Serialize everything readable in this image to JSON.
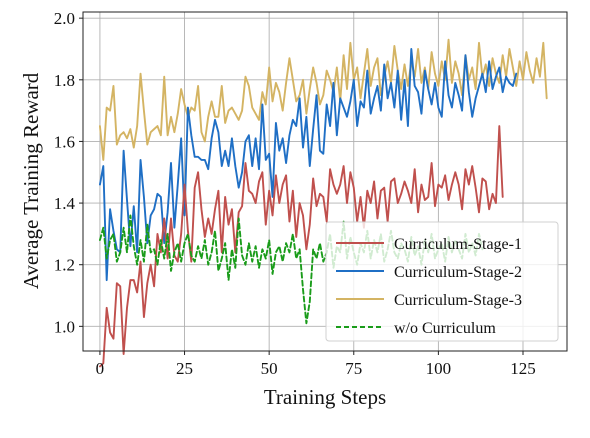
{
  "chart_data": {
    "type": "line",
    "title": "",
    "xlabel": "Training Steps",
    "ylabel": "Average Training Reward",
    "xlim": [
      -5,
      138
    ],
    "ylim": [
      0.92,
      2.02
    ],
    "xticks": [
      0,
      25,
      50,
      75,
      100,
      125
    ],
    "yticks": [
      1.0,
      1.2,
      1.4,
      1.6,
      1.8,
      2.0
    ],
    "ytick_labels": [
      "1.0",
      "1.2",
      "1.4",
      "1.6",
      "1.8",
      "2.0"
    ],
    "grid": true,
    "legend_position": "lower-right",
    "series": [
      {
        "name": "Curriculum-Stage-1",
        "color": "#c0504d",
        "style": "solid",
        "x_start": 0,
        "values": [
          0.87,
          0.88,
          1.06,
          0.98,
          0.96,
          1.14,
          1.13,
          0.91,
          1.06,
          1.15,
          1.15,
          1.11,
          1.21,
          1.03,
          1.14,
          1.2,
          1.13,
          1.3,
          1.24,
          1.35,
          1.22,
          1.35,
          1.23,
          1.21,
          1.3,
          1.46,
          1.31,
          1.21,
          1.45,
          1.5,
          1.38,
          1.29,
          1.35,
          1.3,
          1.38,
          1.44,
          1.24,
          1.42,
          1.33,
          1.38,
          1.24,
          1.37,
          1.39,
          1.53,
          1.44,
          1.43,
          1.4,
          1.47,
          1.5,
          1.33,
          1.44,
          1.36,
          1.49,
          1.4,
          1.46,
          1.49,
          1.34,
          1.44,
          1.29,
          1.4,
          1.36,
          1.25,
          1.33,
          1.48,
          1.39,
          1.43,
          1.42,
          1.34,
          1.51,
          1.46,
          1.43,
          1.46,
          1.52,
          1.4,
          1.5,
          1.45,
          1.34,
          1.42,
          1.32,
          1.44,
          1.4,
          1.47,
          1.35,
          1.44,
          1.45,
          1.34,
          1.47,
          1.48,
          1.4,
          1.43,
          1.47,
          1.44,
          1.4,
          1.51,
          1.37,
          1.46,
          1.41,
          1.42,
          1.53,
          1.39,
          1.46,
          1.45,
          1.49,
          1.41,
          1.46,
          1.5,
          1.46,
          1.38,
          1.51,
          1.46,
          1.52,
          1.45,
          1.37,
          1.48,
          1.47,
          1.38,
          1.43,
          1.4,
          1.65,
          1.42
        ]
      },
      {
        "name": "Curriculum-Stage-2",
        "color": "#1f6fc5",
        "style": "solid",
        "x_start": 0,
        "values": [
          1.46,
          1.52,
          1.15,
          1.38,
          1.31,
          1.25,
          1.24,
          1.57,
          1.41,
          1.26,
          1.39,
          1.24,
          1.54,
          1.42,
          1.27,
          1.36,
          1.38,
          1.43,
          1.42,
          1.27,
          1.37,
          1.53,
          1.32,
          1.46,
          1.61,
          1.36,
          1.71,
          1.62,
          1.55,
          1.55,
          1.54,
          1.54,
          1.51,
          1.61,
          1.67,
          1.63,
          1.52,
          1.57,
          1.52,
          1.61,
          1.52,
          1.45,
          1.5,
          1.6,
          1.62,
          1.52,
          1.61,
          1.51,
          1.72,
          1.54,
          1.56,
          1.42,
          1.66,
          1.57,
          1.61,
          1.53,
          1.62,
          1.67,
          1.65,
          1.74,
          1.58,
          1.68,
          1.52,
          1.64,
          1.75,
          1.57,
          1.56,
          1.72,
          1.65,
          1.79,
          1.62,
          1.74,
          1.71,
          1.68,
          1.73,
          1.8,
          1.65,
          1.73,
          1.71,
          1.83,
          1.69,
          1.74,
          1.78,
          1.7,
          1.85,
          1.74,
          1.79,
          1.71,
          1.83,
          1.67,
          1.8,
          1.65,
          1.9,
          1.78,
          1.76,
          1.69,
          1.83,
          1.77,
          1.72,
          1.79,
          1.71,
          1.68,
          1.86,
          1.75,
          1.71,
          1.79,
          1.75,
          1.7,
          1.88,
          1.76,
          1.68,
          1.74,
          1.78,
          1.82,
          1.76,
          1.86,
          1.77,
          1.81,
          1.84,
          1.76,
          1.81,
          1.79,
          1.78,
          1.82
        ]
      },
      {
        "name": "Curriculum-Stage-3",
        "color": "#d4b463",
        "style": "solid",
        "x_start": 0,
        "values": [
          1.65,
          1.54,
          1.71,
          1.7,
          1.78,
          1.59,
          1.62,
          1.63,
          1.61,
          1.64,
          1.58,
          1.65,
          1.82,
          1.7,
          1.59,
          1.63,
          1.64,
          1.65,
          1.62,
          1.81,
          1.62,
          1.68,
          1.63,
          1.69,
          1.77,
          1.72,
          1.68,
          1.71,
          1.7,
          1.78,
          1.63,
          1.6,
          1.68,
          1.73,
          1.68,
          1.68,
          1.78,
          1.66,
          1.7,
          1.71,
          1.69,
          1.67,
          1.7,
          1.81,
          1.78,
          1.71,
          1.69,
          1.67,
          1.76,
          1.72,
          1.84,
          1.73,
          1.79,
          1.76,
          1.7,
          1.79,
          1.87,
          1.8,
          1.73,
          1.75,
          1.8,
          1.69,
          1.77,
          1.84,
          1.79,
          1.72,
          1.75,
          1.83,
          1.8,
          1.76,
          1.84,
          1.73,
          1.88,
          1.77,
          1.92,
          1.8,
          1.84,
          1.74,
          1.82,
          1.9,
          1.78,
          1.84,
          1.87,
          1.75,
          1.81,
          1.86,
          1.79,
          1.91,
          1.83,
          1.77,
          1.85,
          1.78,
          1.86,
          1.81,
          1.9,
          1.79,
          1.84,
          1.77,
          1.89,
          1.82,
          1.78,
          1.86,
          1.8,
          1.93,
          1.79,
          1.86,
          1.82,
          1.75,
          1.88,
          1.8,
          1.84,
          1.77,
          1.92,
          1.81,
          1.85,
          1.78,
          1.87,
          1.82,
          1.79,
          1.88,
          1.81,
          1.9,
          1.84,
          1.78,
          1.86,
          1.8,
          1.89,
          1.83,
          1.79,
          1.87,
          1.81,
          1.92,
          1.74
        ]
      },
      {
        "name": "w/o Curriculum",
        "color": "#1a9c1a",
        "style": "dashed",
        "x_start": 0,
        "values": [
          1.28,
          1.32,
          1.22,
          1.28,
          1.3,
          1.21,
          1.24,
          1.32,
          1.24,
          1.36,
          1.26,
          1.2,
          1.28,
          1.21,
          1.33,
          1.24,
          1.25,
          1.2,
          1.28,
          1.22,
          1.3,
          1.18,
          1.24,
          1.27,
          1.21,
          1.27,
          1.3,
          1.23,
          1.21,
          1.26,
          1.22,
          1.28,
          1.2,
          1.24,
          1.31,
          1.18,
          1.22,
          1.27,
          1.15,
          1.25,
          1.19,
          1.35,
          1.23,
          1.2,
          1.27,
          1.21,
          1.26,
          1.19,
          1.25,
          1.22,
          1.28,
          1.17,
          1.24,
          1.26,
          1.21,
          1.27,
          1.24,
          1.3,
          1.22,
          1.25,
          1.12,
          1.01,
          1.08,
          1.25,
          1.22,
          1.27,
          1.21,
          1.24,
          1.3,
          1.19,
          1.26,
          1.24,
          1.34,
          1.22,
          1.29,
          1.24,
          1.2,
          1.27,
          1.24,
          1.31,
          1.22,
          1.28,
          1.24,
          1.3,
          1.21,
          1.25,
          1.31,
          1.24,
          1.22,
          1.27,
          1.25,
          1.21,
          1.29,
          1.23,
          1.26,
          1.2,
          1.28,
          1.24,
          1.3,
          1.22,
          1.25,
          1.27,
          1.21,
          1.29,
          1.24,
          1.28,
          1.25,
          1.22,
          1.3,
          1.24,
          1.27,
          1.23,
          1.3,
          1.25
        ]
      }
    ]
  }
}
